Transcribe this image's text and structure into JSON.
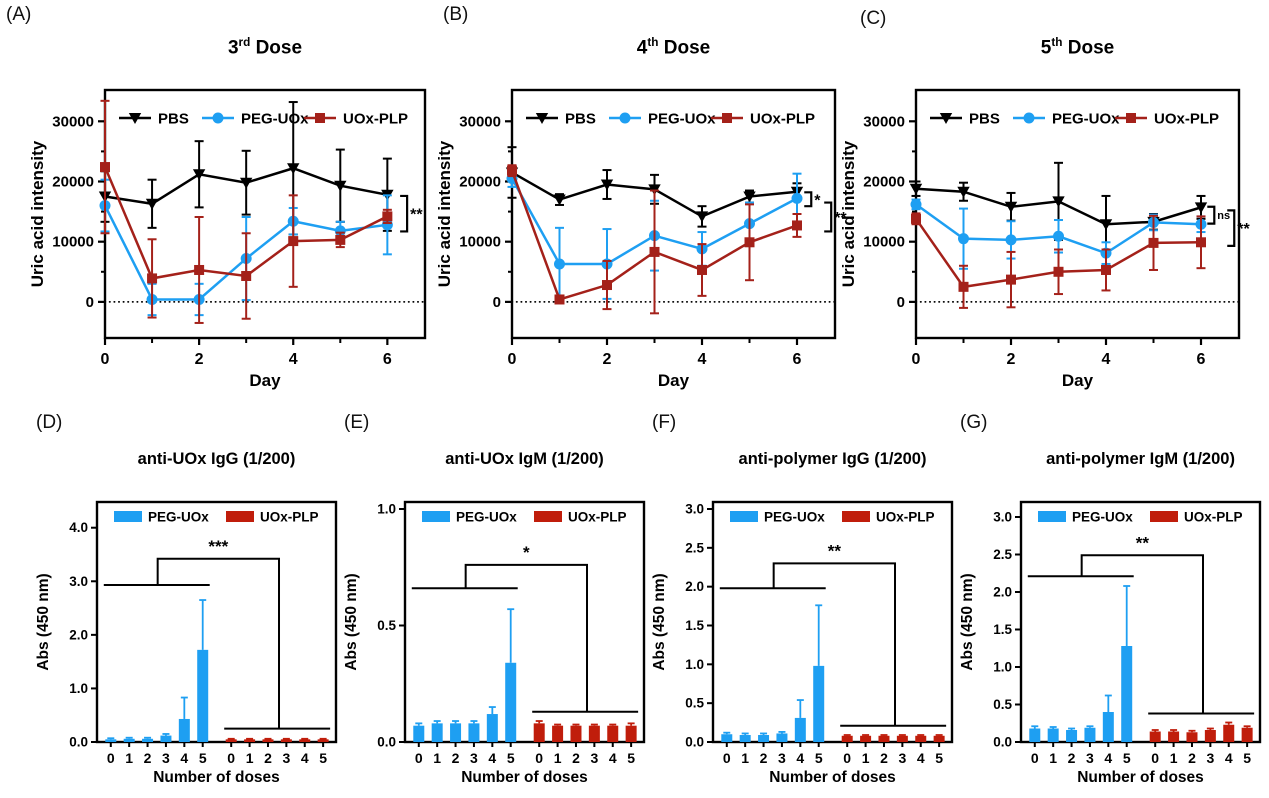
{
  "figure": {
    "background": "#ffffff",
    "colors": {
      "pbs": "#000000",
      "peg_uox": "#1e9ff2",
      "uox_plp_line": "#a4211a",
      "uox_plp_bar": "#c01d0b"
    }
  },
  "chart_data": [
    {
      "id": "A",
      "type": "line",
      "panel_label": "(A)",
      "title": {
        "prefix": "3",
        "sup": "rd",
        "suffix": " Dose"
      },
      "xlabel": "Day",
      "ylabel": "Uric acid intensity",
      "x": [
        0,
        1,
        2,
        3,
        4,
        5,
        6
      ],
      "xlim": [
        0,
        6.8
      ],
      "ylim": [
        -6000,
        35200
      ],
      "yticks": [
        0,
        10000,
        20000,
        30000
      ],
      "ytick_labels": [
        "0",
        "10000",
        "20000",
        "30000"
      ],
      "yticks_minor": [
        5000,
        15000,
        25000
      ],
      "xticks_major": [
        0,
        2,
        4,
        6
      ],
      "xtick_labels": [
        "0",
        "2",
        "4",
        "6"
      ],
      "xticks_minor": [
        1,
        3,
        5
      ],
      "zero_line": true,
      "series": [
        {
          "name": "PBS",
          "color": "#000000",
          "marker": "triangle-down",
          "values": [
            17500,
            16300,
            21200,
            19800,
            22200,
            19300,
            17800
          ],
          "errors": [
            4200,
            4000,
            5500,
            5300,
            11000,
            6000,
            6000
          ]
        },
        {
          "name": "PEG-UOx",
          "color": "#1e9ff2",
          "marker": "circle",
          "values": [
            16000,
            400,
            400,
            7200,
            13400,
            11800,
            12800
          ],
          "errors": [
            4300,
            2600,
            2600,
            6900,
            2200,
            1500,
            4900
          ]
        },
        {
          "name": "UOx-PLP",
          "color": "#a4211a",
          "marker": "square",
          "values": [
            22400,
            3900,
            5300,
            4300,
            10100,
            10300,
            14200
          ],
          "errors": [
            11000,
            6500,
            8800,
            7100,
            7600,
            1200,
            1100
          ]
        }
      ],
      "significance": [
        {
          "x": 6.42,
          "y_top": 17600,
          "y_bottom": 11700,
          "label": "**",
          "small": false
        }
      ],
      "layout": {
        "panel_left": 0,
        "plot_left": 105,
        "plot_right": 425
      }
    },
    {
      "id": "B",
      "type": "line",
      "panel_label": "(B)",
      "title": {
        "prefix": "4",
        "sup": "th",
        "suffix": " Dose"
      },
      "xlabel": "Day",
      "ylabel": "Uric acid intensity",
      "x": [
        0,
        1,
        2,
        3,
        4,
        5,
        6
      ],
      "xlim": [
        0,
        6.8
      ],
      "ylim": [
        -6000,
        35200
      ],
      "yticks": [
        0,
        10000,
        20000,
        30000
      ],
      "ytick_labels": [
        "0",
        "10000",
        "20000",
        "30000"
      ],
      "yticks_minor": [
        5000,
        15000,
        25000
      ],
      "xticks_major": [
        0,
        2,
        4,
        6
      ],
      "xtick_labels": [
        "0",
        "2",
        "4",
        "6"
      ],
      "xticks_minor": [
        1,
        3,
        5
      ],
      "zero_line": true,
      "series": [
        {
          "name": "PBS",
          "color": "#000000",
          "marker": "triangle-down",
          "values": [
            21500,
            17000,
            19500,
            18700,
            14200,
            17500,
            18300
          ],
          "errors": [
            4200,
            900,
            2400,
            2400,
            1700,
            1000,
            1400
          ]
        },
        {
          "name": "PEG-UOx",
          "color": "#1e9ff2",
          "marker": "circle",
          "values": [
            20500,
            6300,
            6300,
            11000,
            8800,
            13000,
            17200
          ],
          "errors": [
            1400,
            6000,
            5800,
            5800,
            2800,
            3500,
            4100
          ]
        },
        {
          "name": "UOx-PLP",
          "color": "#a4211a",
          "marker": "square",
          "values": [
            21800,
            400,
            2800,
            8300,
            5300,
            9900,
            12700
          ],
          "errors": [
            900,
            500,
            4000,
            10200,
            4300,
            6300,
            1900
          ]
        }
      ],
      "significance": [
        {
          "x": 6.3,
          "y_top": 18200,
          "y_bottom": 15900,
          "label": "*",
          "small": false
        },
        {
          "x": 6.72,
          "y_top": 16500,
          "y_bottom": 11700,
          "label": "**",
          "small": false
        }
      ],
      "layout": {
        "panel_left": 423,
        "plot_left": 89,
        "plot_right": 412
      }
    },
    {
      "id": "C",
      "type": "line",
      "panel_label": "(C)",
      "title": {
        "prefix": "5",
        "sup": "th",
        "suffix": " Dose"
      },
      "xlabel": "Day",
      "ylabel": "Uric acid intensity",
      "x": [
        0,
        1,
        2,
        3,
        4,
        5,
        6
      ],
      "xlim": [
        0,
        6.8
      ],
      "ylim": [
        -6000,
        35200
      ],
      "yticks": [
        0,
        10000,
        20000,
        30000
      ],
      "ytick_labels": [
        "0",
        "10000",
        "20000",
        "30000"
      ],
      "yticks_minor": [
        5000,
        15000,
        25000
      ],
      "xticks_major": [
        0,
        2,
        4,
        6
      ],
      "xtick_labels": [
        "0",
        "2",
        "4",
        "6"
      ],
      "xticks_minor": [
        1,
        3,
        5
      ],
      "zero_line": true,
      "series": [
        {
          "name": "PBS",
          "color": "#000000",
          "marker": "triangle-down",
          "values": [
            18800,
            18300,
            15800,
            16700,
            12900,
            13300,
            15700
          ],
          "errors": [
            1200,
            1500,
            2300,
            6400,
            4700,
            1300,
            1900
          ]
        },
        {
          "name": "PEG-UOx",
          "color": "#1e9ff2",
          "marker": "circle",
          "values": [
            16200,
            10500,
            10300,
            10900,
            8100,
            13200,
            12900
          ],
          "errors": [
            800,
            5000,
            3100,
            2700,
            1800,
            1300,
            1300
          ]
        },
        {
          "name": "UOx-PLP",
          "color": "#a4211a",
          "marker": "square",
          "values": [
            13800,
            2500,
            3700,
            5000,
            5300,
            9800,
            9900
          ],
          "errors": [
            900,
            3500,
            4600,
            3700,
            3400,
            4500,
            4300
          ]
        }
      ],
      "significance": [
        {
          "x": 6.28,
          "y_top": 15800,
          "y_bottom": 13000,
          "label": "ns",
          "small": true
        },
        {
          "x": 6.7,
          "y_top": 15200,
          "y_bottom": 9300,
          "label": "**",
          "small": false
        }
      ],
      "layout": {
        "panel_left": 846,
        "plot_left": 70,
        "plot_right": 393
      }
    },
    {
      "id": "D",
      "type": "bar",
      "panel_label": "(D)",
      "title": "anti-UOx IgG (1/200)",
      "xlabel": "Number of doses",
      "ylabel": "Abs (450 nm)",
      "categories": [
        "0",
        "1",
        "2",
        "3",
        "4",
        "5"
      ],
      "ylim": [
        0,
        4.48
      ],
      "yticks": [
        0,
        1,
        2,
        3,
        4
      ],
      "ytick_labels": [
        "0.0",
        "1.0",
        "2.0",
        "3.0",
        "4.0"
      ],
      "series": [
        {
          "name": "PEG-UOx",
          "color": "#1e9ff2",
          "values": [
            0.05,
            0.06,
            0.06,
            0.12,
            0.43,
            1.72
          ],
          "errors": [
            0.02,
            0.02,
            0.02,
            0.03,
            0.4,
            0.93
          ]
        },
        {
          "name": "UOx-PLP",
          "color": "#c01d0b",
          "values": [
            0.05,
            0.05,
            0.05,
            0.05,
            0.05,
            0.05
          ],
          "errors": [
            0.01,
            0.01,
            0.01,
            0.01,
            0.01,
            0.01
          ]
        }
      ],
      "significance": {
        "label": "***",
        "left_y": 2.93,
        "top_y": 3.42,
        "right_y": 0.25
      },
      "layout": {
        "panel_left": 30
      }
    },
    {
      "id": "E",
      "type": "bar",
      "panel_label": "(E)",
      "title": "anti-UOx IgM (1/200)",
      "xlabel": "Number of doses",
      "ylabel": "Abs (450 nm)",
      "categories": [
        "0",
        "1",
        "2",
        "3",
        "4",
        "5"
      ],
      "ylim": [
        0,
        1.03
      ],
      "yticks": [
        0,
        0.5,
        1
      ],
      "ytick_labels": [
        "0.0",
        "0.5",
        "1.0"
      ],
      "series": [
        {
          "name": "PEG-UOx",
          "color": "#1e9ff2",
          "values": [
            0.07,
            0.08,
            0.08,
            0.08,
            0.12,
            0.34
          ],
          "errors": [
            0.01,
            0.01,
            0.01,
            0.01,
            0.03,
            0.23
          ]
        },
        {
          "name": "UOx-PLP",
          "color": "#c01d0b",
          "values": [
            0.08,
            0.07,
            0.07,
            0.07,
            0.07,
            0.07
          ],
          "errors": [
            0.01,
            0.005,
            0.005,
            0.005,
            0.005,
            0.01
          ]
        }
      ],
      "significance": {
        "label": "*",
        "left_y": 0.66,
        "top_y": 0.76,
        "right_y": 0.13
      },
      "layout": {
        "panel_left": 338
      }
    },
    {
      "id": "F",
      "type": "bar",
      "panel_label": "(F)",
      "title": "anti-polymer IgG (1/200)",
      "xlabel": "Number of doses",
      "ylabel": "Abs (450 nm)",
      "categories": [
        "0",
        "1",
        "2",
        "3",
        "4",
        "5"
      ],
      "ylim": [
        0,
        3.09
      ],
      "yticks": [
        0,
        0.5,
        1,
        1.5,
        2,
        2.5,
        3
      ],
      "ytick_labels": [
        "0.0",
        "0.5",
        "1.0",
        "1.5",
        "2.0",
        "2.5",
        "3.0"
      ],
      "series": [
        {
          "name": "PEG-UOx",
          "color": "#1e9ff2",
          "values": [
            0.1,
            0.09,
            0.09,
            0.11,
            0.31,
            0.98
          ],
          "errors": [
            0.02,
            0.02,
            0.02,
            0.02,
            0.23,
            0.78
          ]
        },
        {
          "name": "UOx-PLP",
          "color": "#c01d0b",
          "values": [
            0.08,
            0.08,
            0.08,
            0.08,
            0.08,
            0.08
          ],
          "errors": [
            0.01,
            0.01,
            0.01,
            0.01,
            0.01,
            0.01
          ]
        }
      ],
      "significance": {
        "label": "**",
        "left_y": 1.98,
        "top_y": 2.3,
        "right_y": 0.21
      },
      "layout": {
        "panel_left": 646
      }
    },
    {
      "id": "G",
      "type": "bar",
      "panel_label": "(G)",
      "title": "anti-polymer IgM (1/200)",
      "xlabel": "Number of doses",
      "ylabel": "Abs (450 nm)",
      "categories": [
        "0",
        "1",
        "2",
        "3",
        "4",
        "5"
      ],
      "ylim": [
        0,
        3.2
      ],
      "yticks": [
        0,
        0.5,
        1,
        1.5,
        2,
        2.5,
        3
      ],
      "ytick_labels": [
        "0.0",
        "0.5",
        "1.0",
        "1.5",
        "2.0",
        "2.5",
        "3.0"
      ],
      "series": [
        {
          "name": "PEG-UOx",
          "color": "#1e9ff2",
          "values": [
            0.18,
            0.18,
            0.16,
            0.19,
            0.4,
            1.28
          ],
          "errors": [
            0.03,
            0.02,
            0.02,
            0.02,
            0.22,
            0.8
          ]
        },
        {
          "name": "UOx-PLP",
          "color": "#c01d0b",
          "values": [
            0.14,
            0.14,
            0.13,
            0.16,
            0.23,
            0.19
          ],
          "errors": [
            0.02,
            0.02,
            0.02,
            0.02,
            0.03,
            0.02
          ]
        }
      ],
      "significance": {
        "label": "**",
        "left_y": 2.21,
        "top_y": 2.49,
        "right_y": 0.38
      },
      "layout": {
        "panel_left": 954
      }
    }
  ]
}
